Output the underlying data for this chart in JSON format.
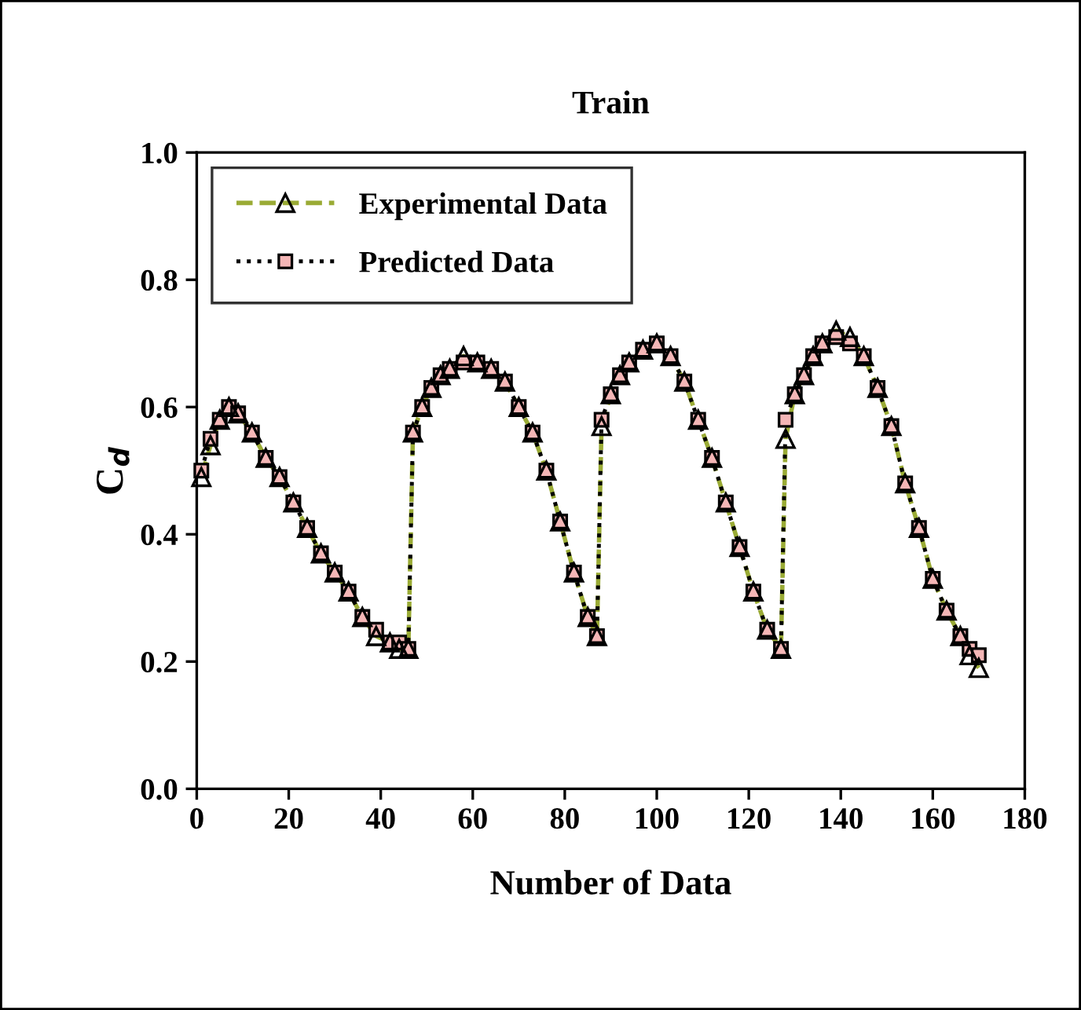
{
  "chart_data": {
    "type": "line",
    "title": "Train",
    "xlabel": "Number of Data",
    "ylabel": "C$_{d}$",
    "x": [
      1,
      3,
      5,
      7,
      9,
      12,
      15,
      18,
      21,
      24,
      27,
      30,
      33,
      36,
      39,
      42,
      44,
      46,
      47,
      49,
      51,
      53,
      55,
      58,
      61,
      64,
      67,
      70,
      73,
      76,
      79,
      82,
      85,
      87,
      88,
      90,
      92,
      94,
      97,
      100,
      103,
      106,
      109,
      112,
      115,
      118,
      121,
      124,
      127,
      128,
      130,
      132,
      134,
      136,
      139,
      142,
      145,
      148,
      151,
      154,
      157,
      160,
      163,
      166,
      168,
      170
    ],
    "series": [
      {
        "name": "Experimental Data",
        "color": "#9aab35",
        "marker": "triangle",
        "line_style": "dashed",
        "values": [
          0.49,
          0.54,
          0.58,
          0.6,
          0.59,
          0.56,
          0.52,
          0.49,
          0.45,
          0.41,
          0.37,
          0.34,
          0.31,
          0.27,
          0.24,
          0.23,
          0.22,
          0.22,
          0.56,
          0.6,
          0.63,
          0.65,
          0.66,
          0.68,
          0.67,
          0.66,
          0.64,
          0.6,
          0.56,
          0.5,
          0.42,
          0.34,
          0.27,
          0.24,
          0.57,
          0.62,
          0.65,
          0.67,
          0.69,
          0.7,
          0.68,
          0.64,
          0.58,
          0.52,
          0.45,
          0.38,
          0.31,
          0.25,
          0.22,
          0.55,
          0.62,
          0.65,
          0.68,
          0.7,
          0.72,
          0.71,
          0.68,
          0.63,
          0.57,
          0.48,
          0.41,
          0.33,
          0.28,
          0.24,
          0.21,
          0.19
        ]
      },
      {
        "name": "Predicted Data",
        "color": "#000000",
        "marker": "square",
        "line_style": "dotted",
        "values": [
          0.5,
          0.55,
          0.58,
          0.6,
          0.59,
          0.56,
          0.52,
          0.49,
          0.45,
          0.41,
          0.37,
          0.34,
          0.31,
          0.27,
          0.25,
          0.23,
          0.23,
          0.22,
          0.56,
          0.6,
          0.63,
          0.65,
          0.66,
          0.67,
          0.67,
          0.66,
          0.64,
          0.6,
          0.56,
          0.5,
          0.42,
          0.34,
          0.27,
          0.24,
          0.58,
          0.62,
          0.65,
          0.67,
          0.69,
          0.7,
          0.68,
          0.64,
          0.58,
          0.52,
          0.45,
          0.38,
          0.31,
          0.25,
          0.22,
          0.58,
          0.62,
          0.65,
          0.68,
          0.7,
          0.71,
          0.7,
          0.68,
          0.63,
          0.57,
          0.48,
          0.41,
          0.33,
          0.28,
          0.24,
          0.22,
          0.21
        ]
      }
    ],
    "xlim": [
      0,
      180
    ],
    "xticks": [
      0,
      20,
      40,
      60,
      80,
      100,
      120,
      140,
      160,
      180
    ],
    "ylim": [
      0,
      1
    ],
    "yticks": [
      {
        "value": 0,
        "label": "0.0"
      },
      {
        "value": 0.2,
        "label": "0.2"
      },
      {
        "value": 0.4,
        "label": "0.4"
      },
      {
        "value": 0.6,
        "label": "0.6"
      },
      {
        "value": 0.8,
        "label": "0.8"
      },
      {
        "value": 1,
        "label": "1.0"
      }
    ],
    "grid": false,
    "legend": "top left"
  }
}
